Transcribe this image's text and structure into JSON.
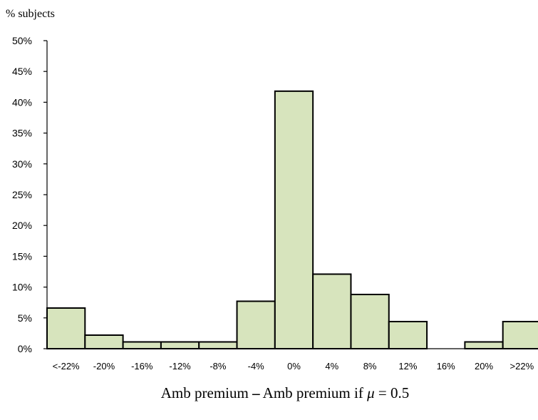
{
  "chart_data": {
    "type": "bar",
    "title": "",
    "ylabel": "% subjects",
    "xlabel_parts": {
      "before": "Amb premium ",
      "dash": "–",
      "middle": " Amb premium if ",
      "symbol": "μ",
      "after": " = 0.5"
    },
    "categories": [
      "<-22%",
      "-20%",
      "-16%",
      "-12%",
      "-8%",
      "-4%",
      "0%",
      "4%",
      "8%",
      "12%",
      "16%",
      "20%",
      ">22%"
    ],
    "values": [
      6.6,
      2.2,
      1.1,
      1.1,
      1.1,
      7.7,
      41.8,
      12.1,
      8.8,
      4.4,
      0.0,
      1.1,
      4.4
    ],
    "ylim": [
      0,
      50
    ],
    "yticks": [
      0,
      5,
      10,
      15,
      20,
      25,
      30,
      35,
      40,
      45,
      50
    ],
    "ytick_labels": [
      "0%",
      "5%",
      "10%",
      "15%",
      "20%",
      "25%",
      "30%",
      "35%",
      "40%",
      "45%",
      "50%"
    ],
    "grid": false,
    "legend": "none",
    "bar_color": "#d7e4bd"
  }
}
